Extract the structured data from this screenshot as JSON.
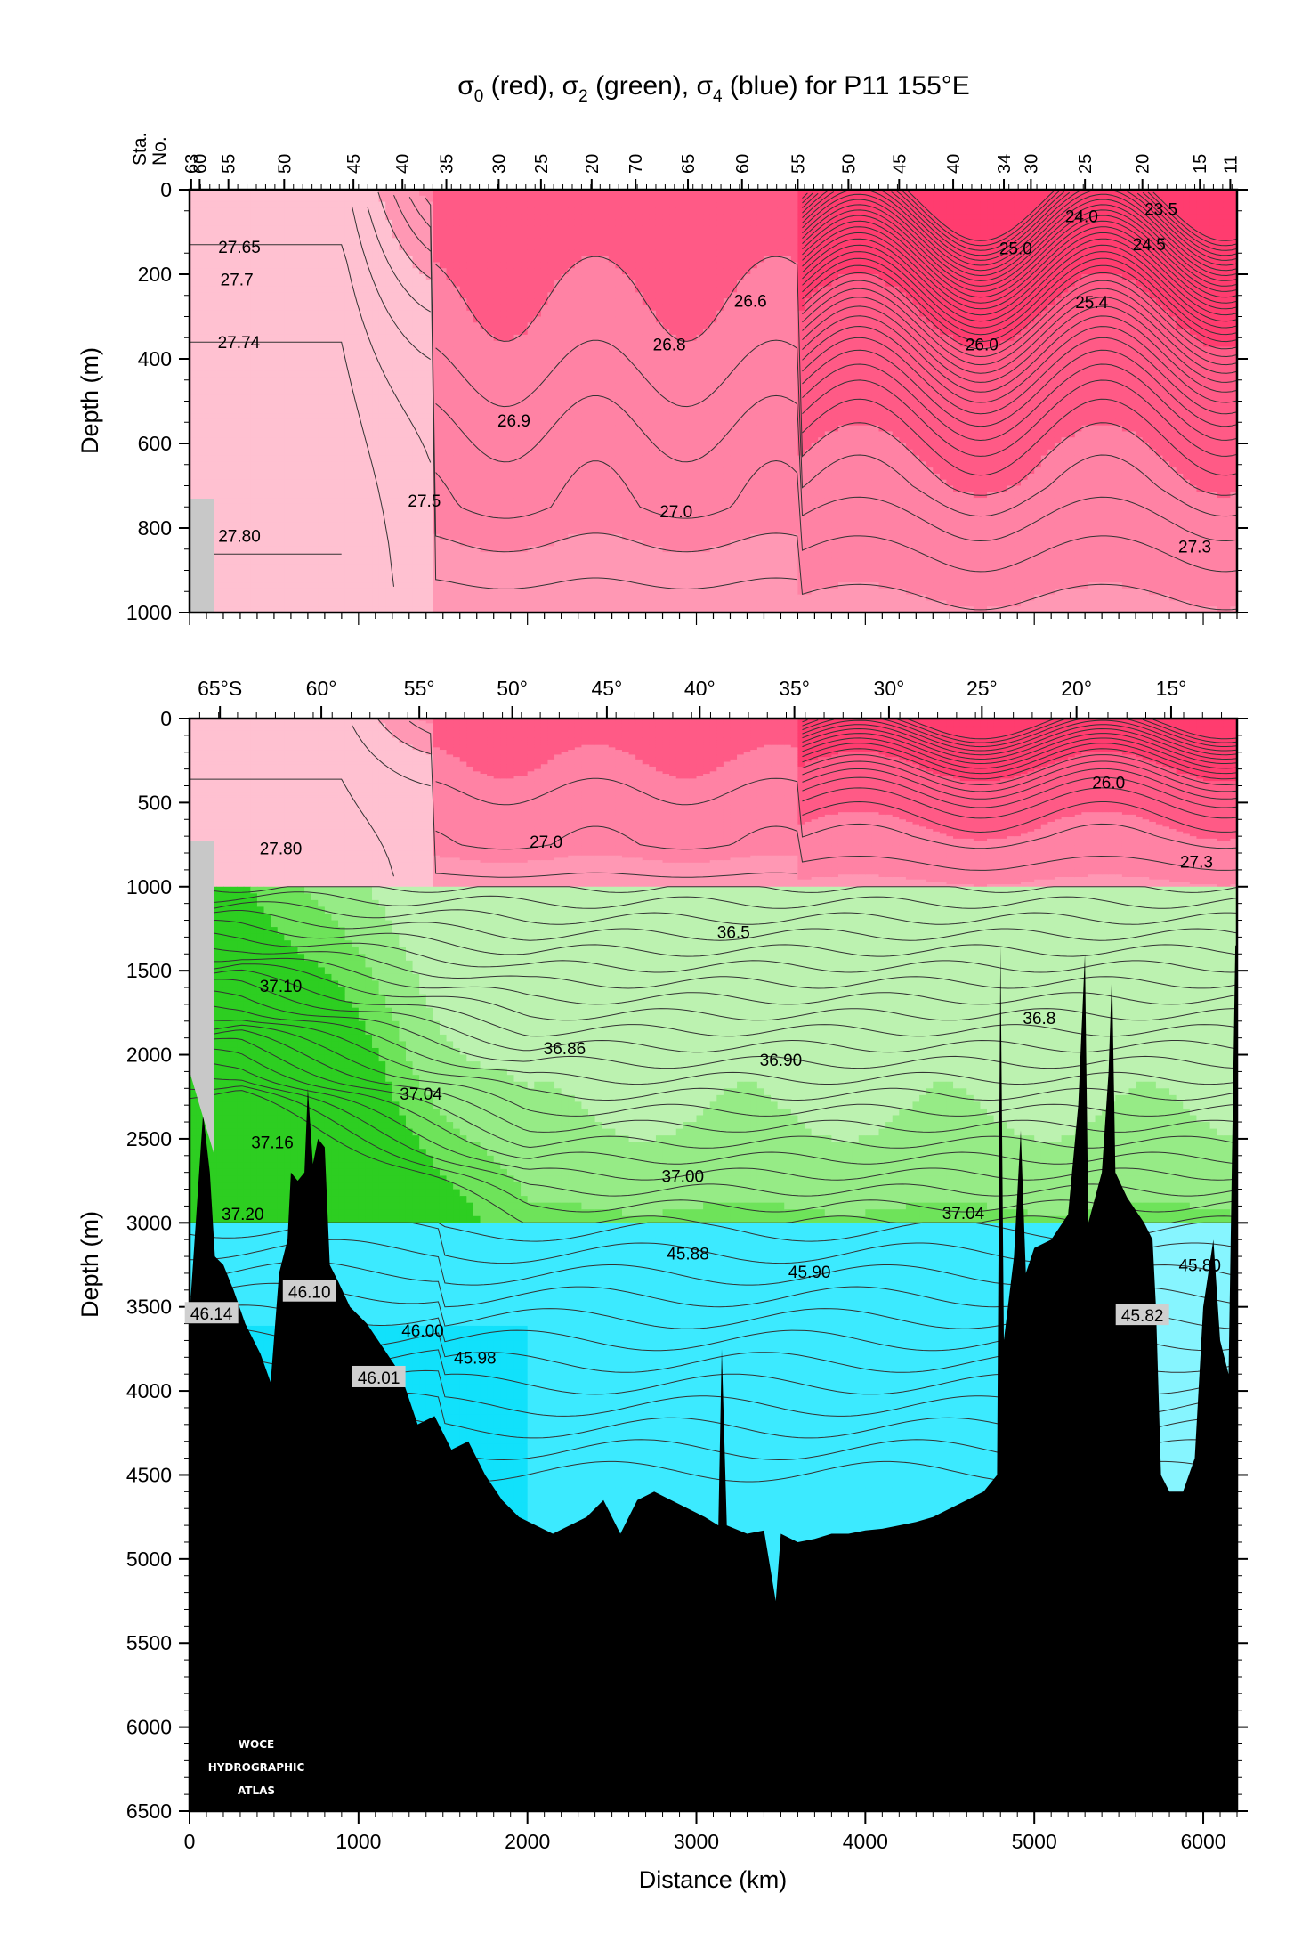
{
  "title": "σ0 (red), σ2 (green), σ4 (blue) for P11 155°E",
  "title_parts": {
    "sym": "σ",
    "s0": "0",
    "t0": " (red), ",
    "s2": "2",
    "t2": " (green), ",
    "s4": "4",
    "t4": " (blue) for P11 155°E"
  },
  "logo_lines": [
    "WOCE",
    "HYDROGRAPHIC",
    "ATLAS"
  ],
  "colors": {
    "red_levels": [
      "#ffc1d1",
      "#ff98b4",
      "#ff82a4",
      "#ff5a86",
      "#ff3c6f"
    ],
    "green_levels": [
      "#bcf2b0",
      "#96eb86",
      "#6ee35a",
      "#2dce21"
    ],
    "blue_levels": [
      "#86f5ff",
      "#3ceaff",
      "#11e1fb"
    ],
    "bathymetry": "#000000",
    "land": "#c8c8c8",
    "contour": "#333333"
  },
  "chart_data": [
    {
      "type": "contour-section",
      "name": "upper",
      "ylabel": "Depth (m)",
      "xlim": [
        0,
        6200
      ],
      "ylim": [
        1000,
        0
      ],
      "yticks": [
        0,
        200,
        400,
        600,
        800,
        1000
      ],
      "station_axis_label_1": "Sta.",
      "station_axis_label_2": "No.",
      "stations": [
        {
          "label": "63",
          "km": 10
        },
        {
          "label": "60",
          "km": 60
        },
        {
          "label": "55",
          "km": 230
        },
        {
          "label": "50",
          "km": 560
        },
        {
          "label": "45",
          "km": 970
        },
        {
          "label": "40",
          "km": 1260
        },
        {
          "label": "35",
          "km": 1520
        },
        {
          "label": "30",
          "km": 1830
        },
        {
          "label": "25",
          "km": 2080
        },
        {
          "label": "20",
          "km": 2380
        },
        {
          "label": "70",
          "km": 2640
        },
        {
          "label": "65",
          "km": 2950
        },
        {
          "label": "60",
          "km": 3270
        },
        {
          "label": "55",
          "km": 3600
        },
        {
          "label": "50",
          "km": 3900
        },
        {
          "label": "45",
          "km": 4200
        },
        {
          "label": "40",
          "km": 4520
        },
        {
          "label": "34",
          "km": 4820
        },
        {
          "label": "30",
          "km": 4980
        },
        {
          "label": "25",
          "km": 5300
        },
        {
          "label": "20",
          "km": 5640
        },
        {
          "label": "15",
          "km": 5980
        },
        {
          "label": "11",
          "km": 6160
        }
      ],
      "contour_labels": [
        {
          "text": "27.65",
          "x": 295,
          "y": 135
        },
        {
          "text": "27.7",
          "x": 280,
          "y": 212
        },
        {
          "text": "27.74",
          "x": 292,
          "y": 360
        },
        {
          "text": "27.80",
          "x": 295,
          "y": 818
        },
        {
          "text": "27.5",
          "x": 1390,
          "y": 735
        },
        {
          "text": "26.9",
          "x": 1920,
          "y": 545
        },
        {
          "text": "26.8",
          "x": 2840,
          "y": 365
        },
        {
          "text": "26.6",
          "x": 3320,
          "y": 262
        },
        {
          "text": "27.0",
          "x": 2880,
          "y": 760
        },
        {
          "text": "24.0",
          "x": 5280,
          "y": 62
        },
        {
          "text": "23.5",
          "x": 5750,
          "y": 45
        },
        {
          "text": "24.5",
          "x": 5680,
          "y": 128
        },
        {
          "text": "25.0",
          "x": 4890,
          "y": 138
        },
        {
          "text": "25.4",
          "x": 5340,
          "y": 265
        },
        {
          "text": "26.0",
          "x": 4690,
          "y": 365
        },
        {
          "text": "27.3",
          "x": 5950,
          "y": 843
        }
      ]
    },
    {
      "type": "contour-section",
      "name": "full-depth",
      "xlabel": "Distance (km)",
      "ylabel": "Depth (m)",
      "xlim": [
        0,
        6200
      ],
      "ylim": [
        6500,
        0
      ],
      "xticks": [
        0,
        1000,
        2000,
        3000,
        4000,
        5000,
        6000
      ],
      "yticks": [
        0,
        500,
        1000,
        1500,
        2000,
        2500,
        3000,
        3500,
        4000,
        4500,
        5000,
        5500,
        6000,
        6500
      ],
      "latitude_ticks": [
        {
          "label": "65°S",
          "km": 180
        },
        {
          "label": "60°",
          "km": 780
        },
        {
          "label": "55°",
          "km": 1360
        },
        {
          "label": "50°",
          "km": 1910
        },
        {
          "label": "45°",
          "km": 2470
        },
        {
          "label": "40°",
          "km": 3020
        },
        {
          "label": "35°",
          "km": 3580
        },
        {
          "label": "30°",
          "km": 4140
        },
        {
          "label": "25°",
          "km": 4690
        },
        {
          "label": "20°",
          "km": 5250
        },
        {
          "label": "15°",
          "km": 5810
        }
      ],
      "contour_labels": [
        {
          "text": "27.80",
          "x": 540,
          "y": 770,
          "boxed": false
        },
        {
          "text": "27.0",
          "x": 2110,
          "y": 730,
          "boxed": false
        },
        {
          "text": "26.0",
          "x": 5440,
          "y": 380,
          "boxed": false
        },
        {
          "text": "27.3",
          "x": 5960,
          "y": 850,
          "boxed": false
        },
        {
          "text": "36.5",
          "x": 3220,
          "y": 1270,
          "boxed": false
        },
        {
          "text": "37.10",
          "x": 540,
          "y": 1590,
          "boxed": false
        },
        {
          "text": "36.86",
          "x": 2220,
          "y": 1960,
          "boxed": false
        },
        {
          "text": "36.90",
          "x": 3500,
          "y": 2030,
          "boxed": false
        },
        {
          "text": "36.8",
          "x": 5030,
          "y": 1780,
          "boxed": false
        },
        {
          "text": "37.04",
          "x": 1370,
          "y": 2230,
          "boxed": false
        },
        {
          "text": "37.16",
          "x": 490,
          "y": 2520,
          "boxed": false
        },
        {
          "text": "37.00",
          "x": 2920,
          "y": 2720,
          "boxed": false
        },
        {
          "text": "37.04",
          "x": 4580,
          "y": 2940,
          "boxed": false
        },
        {
          "text": "37.20",
          "x": 315,
          "y": 2945,
          "boxed": false
        },
        {
          "text": "45.88",
          "x": 2950,
          "y": 3180,
          "boxed": false
        },
        {
          "text": "45.90",
          "x": 3670,
          "y": 3290,
          "boxed": false
        },
        {
          "text": "45.80",
          "x": 5980,
          "y": 3250,
          "boxed": false
        },
        {
          "text": "46.10",
          "x": 710,
          "y": 3410,
          "boxed": true
        },
        {
          "text": "46.14",
          "x": 130,
          "y": 3540,
          "boxed": true
        },
        {
          "text": "45.82",
          "x": 5640,
          "y": 3550,
          "boxed": true
        },
        {
          "text": "46.00",
          "x": 1380,
          "y": 3640,
          "boxed": false
        },
        {
          "text": "45.98",
          "x": 1690,
          "y": 3800,
          "boxed": false
        },
        {
          "text": "46.01",
          "x": 1120,
          "y": 3920,
          "boxed": true
        }
      ],
      "bathymetry_km_depth": [
        [
          0,
          3550
        ],
        [
          80,
          2350
        ],
        [
          120,
          2700
        ],
        [
          150,
          3200
        ],
        [
          200,
          3250
        ],
        [
          260,
          3400
        ],
        [
          330,
          3600
        ],
        [
          420,
          3780
        ],
        [
          480,
          3950
        ],
        [
          530,
          3300
        ],
        [
          580,
          3100
        ],
        [
          600,
          2700
        ],
        [
          640,
          2750
        ],
        [
          680,
          2700
        ],
        [
          700,
          2200
        ],
        [
          730,
          2650
        ],
        [
          760,
          2500
        ],
        [
          800,
          2550
        ],
        [
          830,
          3250
        ],
        [
          880,
          3350
        ],
        [
          950,
          3500
        ],
        [
          1050,
          3600
        ],
        [
          1150,
          3750
        ],
        [
          1250,
          3900
        ],
        [
          1350,
          4200
        ],
        [
          1450,
          4150
        ],
        [
          1550,
          4350
        ],
        [
          1650,
          4300
        ],
        [
          1750,
          4500
        ],
        [
          1850,
          4650
        ],
        [
          1950,
          4750
        ],
        [
          2050,
          4800
        ],
        [
          2150,
          4850
        ],
        [
          2250,
          4800
        ],
        [
          2350,
          4750
        ],
        [
          2450,
          4650
        ],
        [
          2550,
          4850
        ],
        [
          2650,
          4650
        ],
        [
          2750,
          4600
        ],
        [
          2850,
          4650
        ],
        [
          2950,
          4700
        ],
        [
          3050,
          4750
        ],
        [
          3130,
          4800
        ],
        [
          3150,
          3750
        ],
        [
          3180,
          4800
        ],
        [
          3300,
          4850
        ],
        [
          3400,
          4830
        ],
        [
          3470,
          5250
        ],
        [
          3500,
          4850
        ],
        [
          3600,
          4900
        ],
        [
          3700,
          4880
        ],
        [
          3800,
          4850
        ],
        [
          3900,
          4850
        ],
        [
          4000,
          4830
        ],
        [
          4100,
          4820
        ],
        [
          4200,
          4800
        ],
        [
          4300,
          4780
        ],
        [
          4400,
          4750
        ],
        [
          4500,
          4700
        ],
        [
          4600,
          4650
        ],
        [
          4700,
          4600
        ],
        [
          4780,
          4500
        ],
        [
          4800,
          1350
        ],
        [
          4820,
          3700
        ],
        [
          4880,
          3200
        ],
        [
          4920,
          2450
        ],
        [
          4950,
          3300
        ],
        [
          5000,
          3150
        ],
        [
          5100,
          3100
        ],
        [
          5200,
          2950
        ],
        [
          5260,
          2300
        ],
        [
          5300,
          1400
        ],
        [
          5320,
          3000
        ],
        [
          5400,
          2700
        ],
        [
          5440,
          2100
        ],
        [
          5460,
          1500
        ],
        [
          5480,
          2700
        ],
        [
          5550,
          2850
        ],
        [
          5650,
          3000
        ],
        [
          5700,
          3100
        ],
        [
          5720,
          3500
        ],
        [
          5750,
          4500
        ],
        [
          5800,
          4600
        ],
        [
          5880,
          4600
        ],
        [
          5950,
          4400
        ],
        [
          6000,
          3500
        ],
        [
          6060,
          3100
        ],
        [
          6100,
          3700
        ],
        [
          6150,
          3900
        ],
        [
          6190,
          1350
        ],
        [
          6200,
          1350
        ]
      ]
    }
  ]
}
